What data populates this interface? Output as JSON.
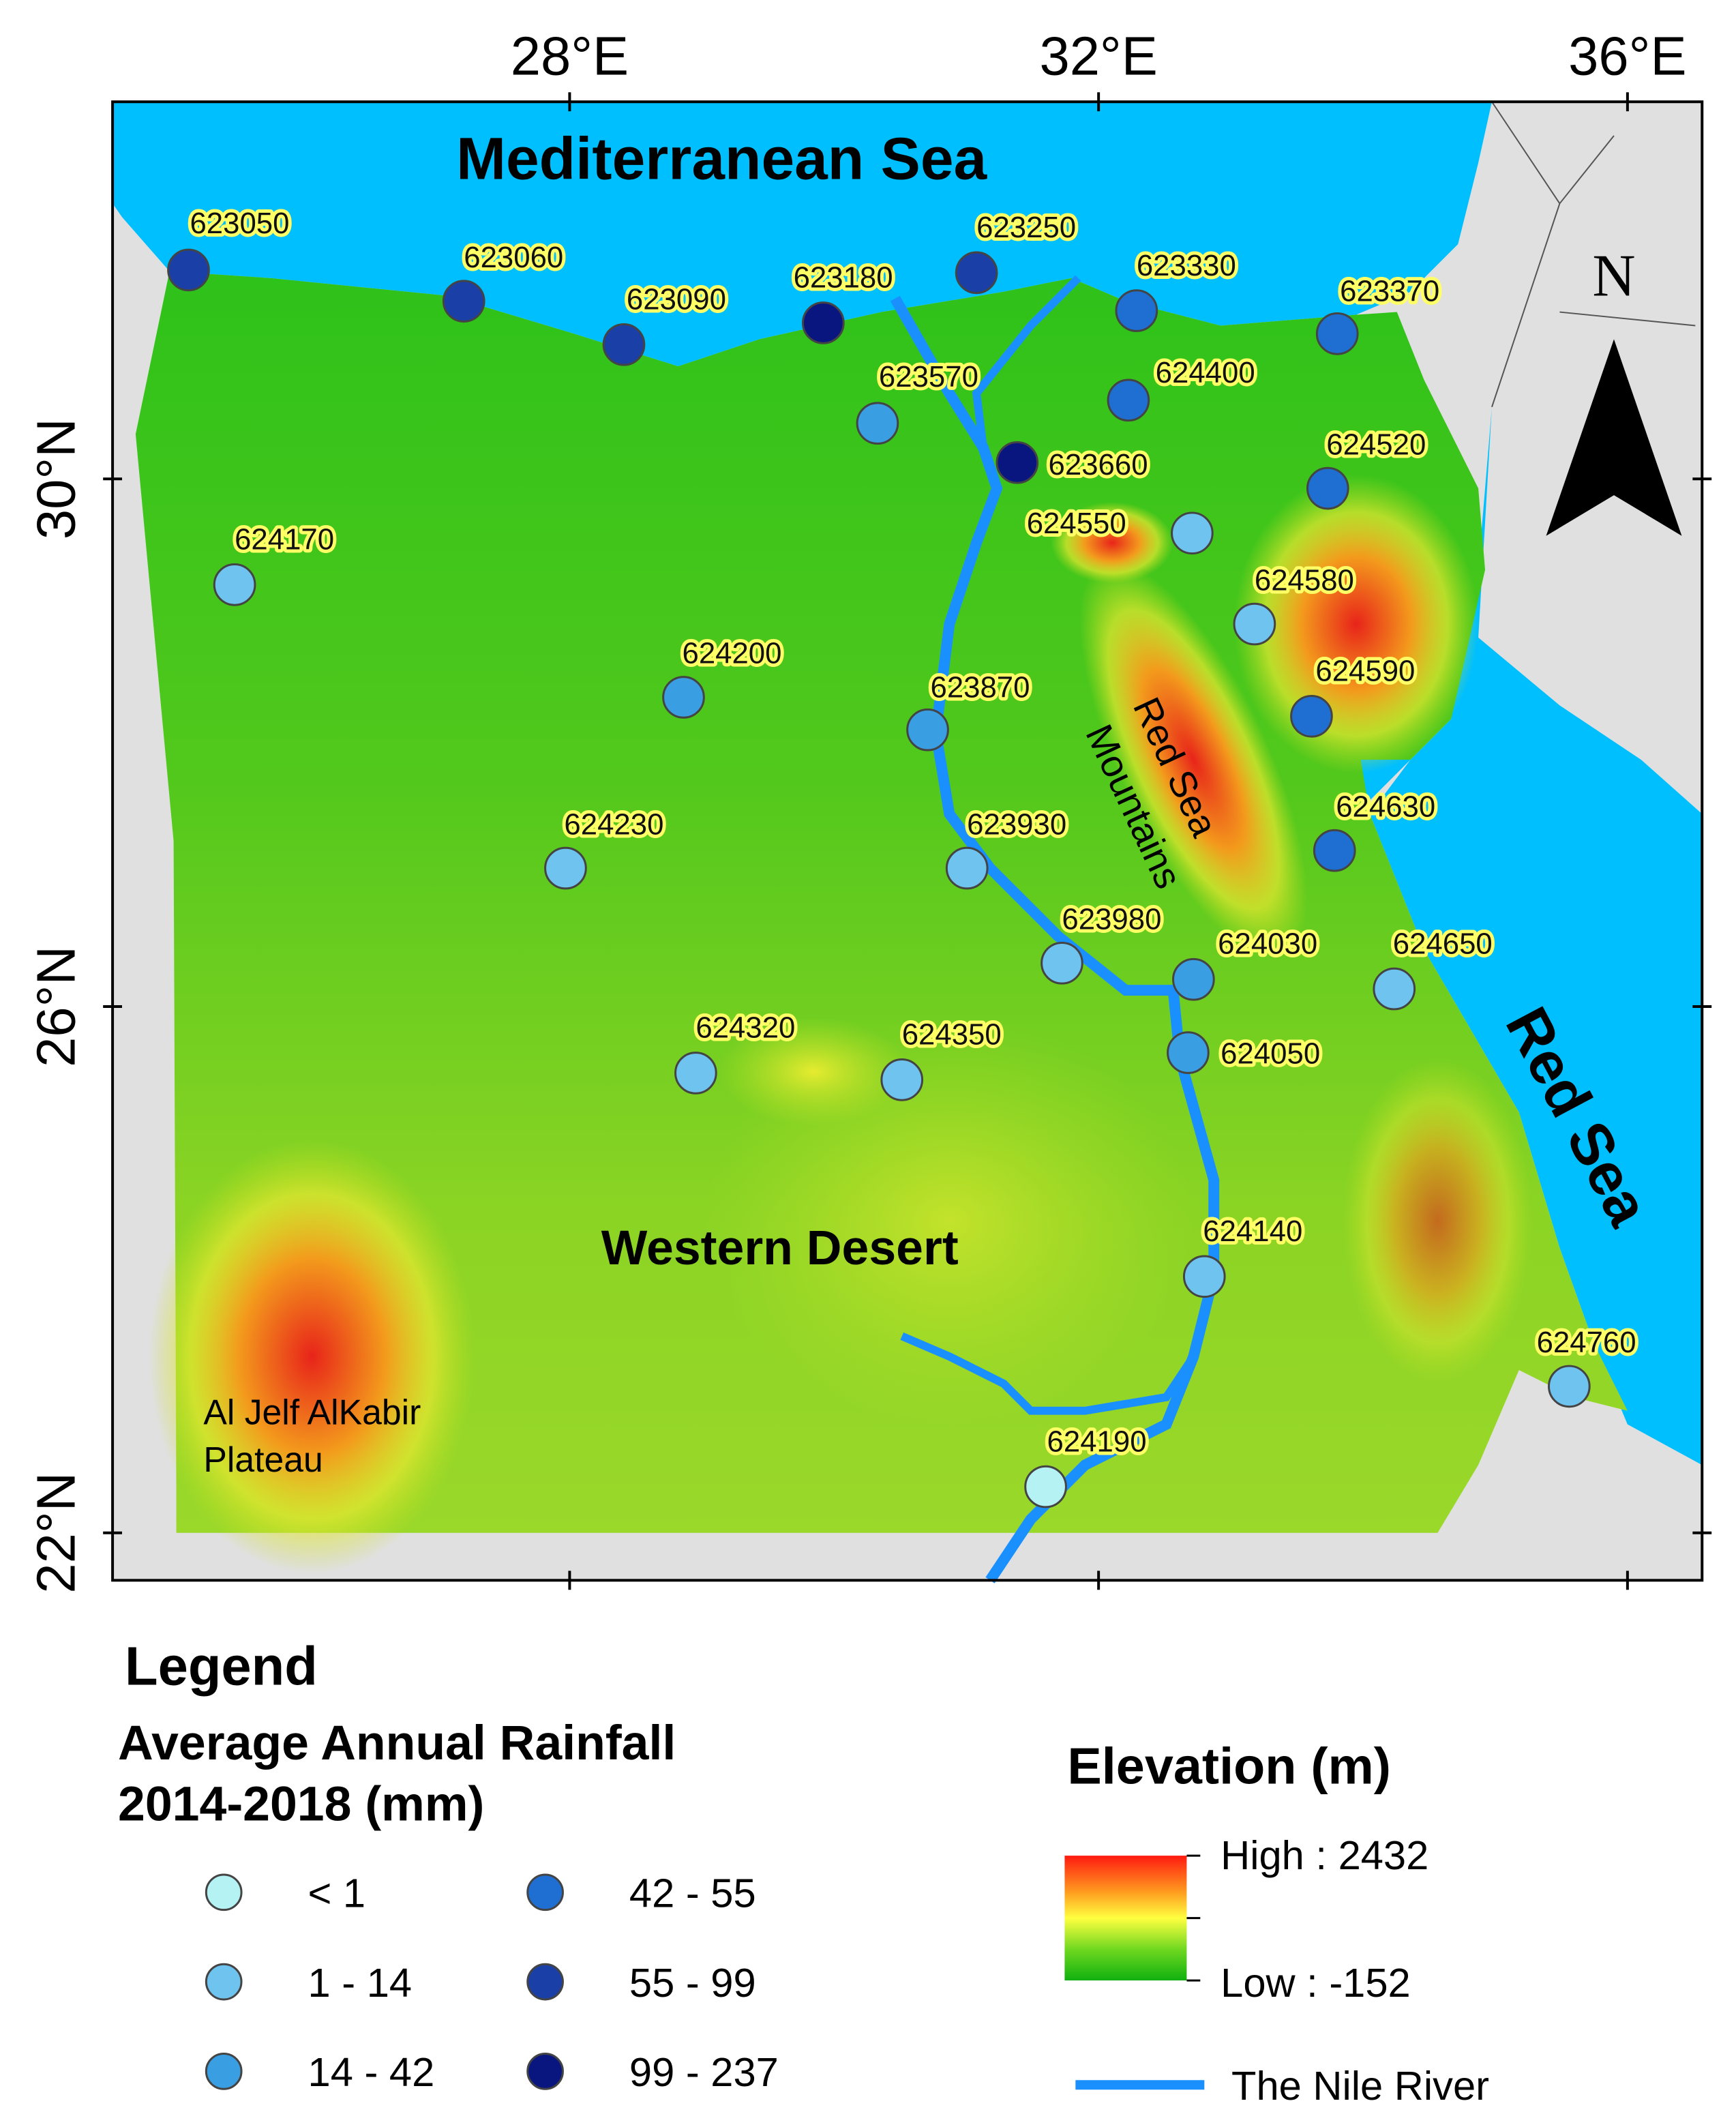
{
  "map": {
    "sea_labels": [
      "Mediterranean Sea",
      "Red Sea"
    ],
    "region_labels": [
      "Western Desert",
      "Red Sea",
      "Mountains",
      "Al Jelf AlKabir",
      "Plateau"
    ],
    "lon_labels": [
      "28°E",
      "32°E",
      "36°E"
    ],
    "lat_labels": [
      "30°N",
      "26°N",
      "22°N"
    ],
    "north_arrow": "N",
    "stations": [
      {
        "id": "623050",
        "range": "55 - 99"
      },
      {
        "id": "623060",
        "range": "55 - 99"
      },
      {
        "id": "623090",
        "range": "55 - 99"
      },
      {
        "id": "623180",
        "range": "99 - 237"
      },
      {
        "id": "623250",
        "range": "55 - 99"
      },
      {
        "id": "623330",
        "range": "42 - 55"
      },
      {
        "id": "623370",
        "range": "42 - 55"
      },
      {
        "id": "623570",
        "range": "14 - 42"
      },
      {
        "id": "624400",
        "range": "42 - 55"
      },
      {
        "id": "623660",
        "range": "99 - 237"
      },
      {
        "id": "624520",
        "range": "42 - 55"
      },
      {
        "id": "624170",
        "range": "1 - 14"
      },
      {
        "id": "624550",
        "range": "1 - 14"
      },
      {
        "id": "624580",
        "range": "1 - 14"
      },
      {
        "id": "624590",
        "range": "42 - 55"
      },
      {
        "id": "624200",
        "range": "14 - 42"
      },
      {
        "id": "623870",
        "range": "14 - 42"
      },
      {
        "id": "624630",
        "range": "42 - 55"
      },
      {
        "id": "624230",
        "range": "1 - 14"
      },
      {
        "id": "623930",
        "range": "1 - 14"
      },
      {
        "id": "623980",
        "range": "1 - 14"
      },
      {
        "id": "624030",
        "range": "14 - 42"
      },
      {
        "id": "624650",
        "range": "1 - 14"
      },
      {
        "id": "624050",
        "range": "14 - 42"
      },
      {
        "id": "624320",
        "range": "1 - 14"
      },
      {
        "id": "624350",
        "range": "1 - 14"
      },
      {
        "id": "624140",
        "range": "1 - 14"
      },
      {
        "id": "624760",
        "range": "1 - 14"
      },
      {
        "id": "624190",
        "range": "< 1"
      }
    ]
  },
  "legend": {
    "title": "Legend",
    "rainfall_title": [
      "Average Annual Rainfall",
      "2014-2018 (mm)"
    ],
    "classes": [
      {
        "label": "< 1",
        "color": "#b4f2f4"
      },
      {
        "label": "1 - 14",
        "color": "#6ec3ef"
      },
      {
        "label": "14 - 42",
        "color": "#3a9ee2"
      },
      {
        "label": "42 - 55",
        "color": "#1f6fd3"
      },
      {
        "label": "55 - 99",
        "color": "#1a3fa6"
      },
      {
        "label": "99 - 237",
        "color": "#0a1680"
      }
    ],
    "elevation_title": "Elevation (m)",
    "elevation_high": "High : 2432",
    "elevation_low": "Low : -152",
    "river": "The Nile River"
  }
}
